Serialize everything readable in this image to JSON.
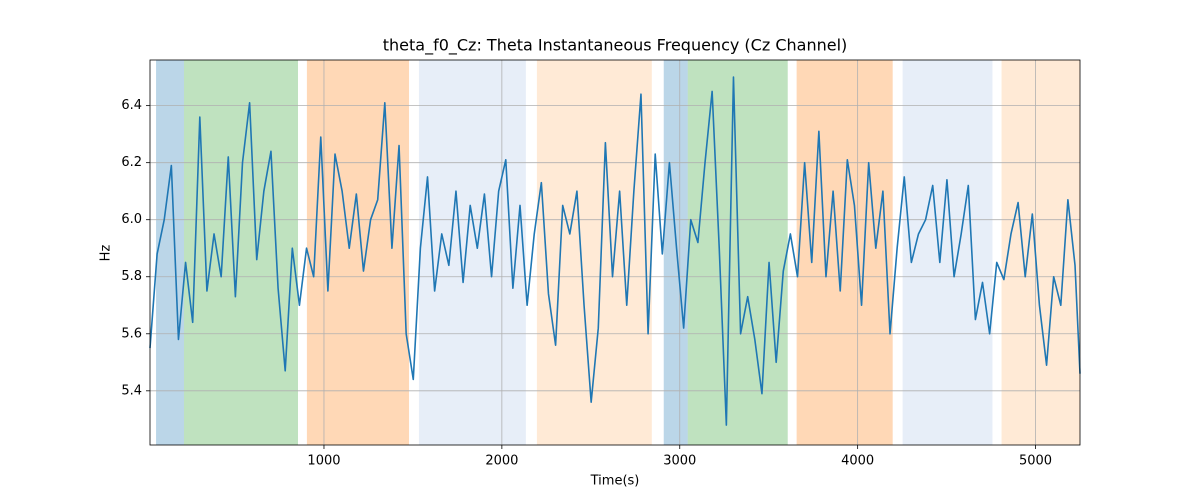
{
  "chart_data": {
    "type": "line",
    "title": "theta_f0_Cz: Theta Instantaneous Frequency (Cz Channel)",
    "xlabel": "Time(s)",
    "ylabel": "Hz",
    "color": "#1f77b4",
    "grid": true,
    "xlim": [
      22,
      5250
    ],
    "ylim": [
      5.21,
      6.56
    ],
    "xticks": [
      1000,
      2000,
      3000,
      4000,
      5000
    ],
    "yticks": [
      5.4,
      5.6,
      5.8,
      {
        "value": 6,
        "label": "6.0"
      },
      6.2,
      6.4
    ],
    "spans": [
      {
        "start": 56,
        "end": 213,
        "color": "rgba(31,119,180,0.3)"
      },
      {
        "start": 213,
        "end": 854,
        "color": "rgba(44,160,44,0.3)"
      },
      {
        "start": 904,
        "end": 1478,
        "color": "rgba(255,127,14,0.3)"
      },
      {
        "start": 1534,
        "end": 2135,
        "color": "rgba(174,199,232,0.3)"
      },
      {
        "start": 2197,
        "end": 2843,
        "color": "rgba(255,187,120,0.3)"
      },
      {
        "start": 2910,
        "end": 3045,
        "color": "rgba(31,119,180,0.3)"
      },
      {
        "start": 3045,
        "end": 3607,
        "color": "rgba(44,160,44,0.3)"
      },
      {
        "start": 3657,
        "end": 4197,
        "color": "rgba(255,127,14,0.3)"
      },
      {
        "start": 4253,
        "end": 4758,
        "color": "rgba(174,199,232,0.3)"
      },
      {
        "start": 4809,
        "end": 5250,
        "color": "rgba(255,187,120,0.3)"
      }
    ],
    "x": [
      22,
      62,
      102,
      142,
      182,
      222,
      262,
      302,
      342,
      382,
      422,
      462,
      502,
      542,
      582,
      622,
      662,
      702,
      742,
      782,
      822,
      862,
      902,
      942,
      982,
      1022,
      1062,
      1102,
      1142,
      1182,
      1222,
      1262,
      1302,
      1342,
      1382,
      1422,
      1462,
      1502,
      1542,
      1582,
      1622,
      1662,
      1702,
      1742,
      1782,
      1822,
      1862,
      1902,
      1942,
      1982,
      2022,
      2062,
      2102,
      2142,
      2182,
      2222,
      2262,
      2302,
      2342,
      2382,
      2422,
      2462,
      2502,
      2542,
      2582,
      2622,
      2662,
      2702,
      2742,
      2782,
      2822,
      2862,
      2902,
      2942,
      2982,
      3022,
      3062,
      3102,
      3142,
      3182,
      3222,
      3262,
      3302,
      3342,
      3382,
      3422,
      3462,
      3502,
      3542,
      3582,
      3622,
      3662,
      3702,
      3742,
      3782,
      3822,
      3862,
      3902,
      3942,
      3982,
      4022,
      4062,
      4102,
      4142,
      4182,
      4222,
      4262,
      4302,
      4342,
      4382,
      4422,
      4462,
      4502,
      4542,
      4582,
      4622,
      4662,
      4702,
      4742,
      4782,
      4822,
      4862,
      4902,
      4942,
      4982,
      5022,
      5062,
      5102,
      5142,
      5182,
      5222,
      5250
    ],
    "values": [
      5.55,
      5.88,
      6.0,
      6.19,
      5.58,
      5.85,
      5.64,
      6.36,
      5.75,
      5.95,
      5.8,
      6.22,
      5.73,
      6.2,
      6.41,
      5.86,
      6.1,
      6.24,
      5.76,
      5.47,
      5.9,
      5.7,
      5.9,
      5.8,
      6.29,
      5.75,
      6.23,
      6.1,
      5.9,
      6.09,
      5.82,
      6.0,
      6.07,
      6.41,
      5.9,
      6.26,
      5.6,
      5.44,
      5.9,
      6.15,
      5.75,
      5.95,
      5.84,
      6.1,
      5.78,
      6.05,
      5.9,
      6.09,
      5.8,
      6.1,
      6.21,
      5.76,
      6.05,
      5.7,
      5.95,
      6.13,
      5.74,
      5.56,
      6.05,
      5.95,
      6.1,
      5.7,
      5.36,
      5.62,
      6.27,
      5.8,
      6.1,
      5.7,
      6.1,
      6.44,
      5.6,
      6.23,
      5.88,
      6.2,
      5.9,
      5.62,
      6.0,
      5.92,
      6.2,
      6.45,
      5.9,
      5.28,
      6.5,
      5.6,
      5.73,
      5.58,
      5.39,
      5.85,
      5.5,
      5.82,
      5.95,
      5.8,
      6.2,
      5.85,
      6.31,
      5.8,
      6.1,
      5.75,
      6.21,
      6.05,
      5.7,
      6.2,
      5.9,
      6.1,
      5.6,
      5.9,
      6.15,
      5.85,
      5.95,
      6.0,
      6.12,
      5.85,
      6.14,
      5.8,
      5.95,
      6.12,
      5.65,
      5.78,
      5.6,
      5.85,
      5.79,
      5.95,
      6.06,
      5.8,
      6.02,
      5.7,
      5.49,
      5.8,
      5.7,
      6.07,
      5.84,
      5.46
    ]
  }
}
